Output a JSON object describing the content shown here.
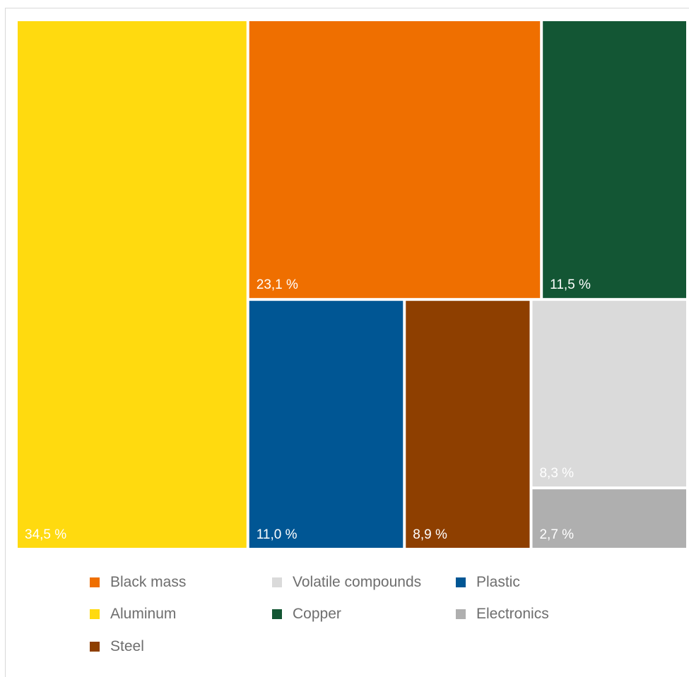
{
  "chart_data": {
    "type": "treemap",
    "items": [
      {
        "name": "Aluminum",
        "value": 34.5,
        "label": "34,5 %",
        "color": "#FFDA0F"
      },
      {
        "name": "Black mass",
        "value": 23.1,
        "label": "23,1 %",
        "color": "#EF6F00"
      },
      {
        "name": "Copper",
        "value": 11.5,
        "label": "11,5 %",
        "color": "#135634"
      },
      {
        "name": "Plastic",
        "value": 11.0,
        "label": "11,0 %",
        "color": "#005694"
      },
      {
        "name": "Steel",
        "value": 8.9,
        "label": "8,9 %",
        "color": "#8E3F00"
      },
      {
        "name": "Volatile compounds",
        "value": 8.3,
        "label": "8,3 %",
        "color": "#DADADA"
      },
      {
        "name": "Electronics",
        "value": 2.7,
        "label": "2,7 %",
        "color": "#AFAFAF"
      }
    ],
    "legend": {
      "placement": "bottom",
      "entries": [
        {
          "name": "Black mass",
          "color": "#EF6F00"
        },
        {
          "name": "Volatile compounds",
          "color": "#DADADA"
        },
        {
          "name": "Plastic",
          "color": "#005694"
        },
        {
          "name": "Aluminum",
          "color": "#FFDA0F"
        },
        {
          "name": "Copper",
          "color": "#135634"
        },
        {
          "name": "Electronics",
          "color": "#AFAFAF"
        },
        {
          "name": "Steel",
          "color": "#8E3F00"
        }
      ]
    }
  }
}
